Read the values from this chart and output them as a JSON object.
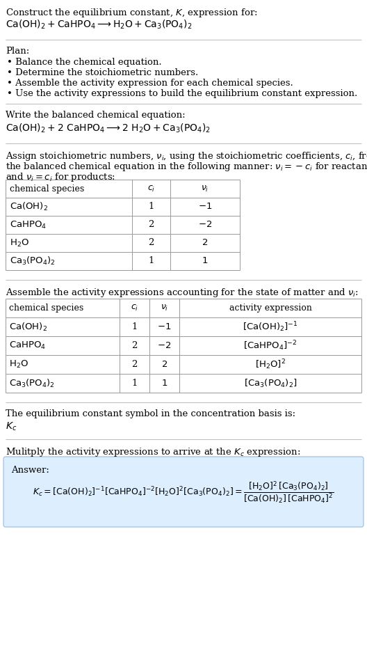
{
  "title_line1": "Construct the equilibrium constant, $K$, expression for:",
  "title_line2": "$\\mathrm{Ca(OH)_2 + CaHPO_4 \\longrightarrow H_2O + Ca_3(PO_4)_2}$",
  "plan_header": "Plan:",
  "plan_items": [
    "• Balance the chemical equation.",
    "• Determine the stoichiometric numbers.",
    "• Assemble the activity expression for each chemical species.",
    "• Use the activity expressions to build the equilibrium constant expression."
  ],
  "balanced_header": "Write the balanced chemical equation:",
  "balanced_eq": "$\\mathrm{Ca(OH)_2 + 2\\ CaHPO_4 \\longrightarrow 2\\ H_2O + Ca_3(PO_4)_2}$",
  "stoich_intro1": "Assign stoichiometric numbers, $\\nu_i$, using the stoichiometric coefficients, $c_i$, from",
  "stoich_intro2": "the balanced chemical equation in the following manner: $\\nu_i = -c_i$ for reactants",
  "stoich_intro3": "and $\\nu_i = c_i$ for products:",
  "table1_headers": [
    "chemical species",
    "$c_i$",
    "$\\nu_i$"
  ],
  "table1_rows": [
    [
      "$\\mathrm{Ca(OH)_2}$",
      "1",
      "$-1$"
    ],
    [
      "$\\mathrm{CaHPO_4}$",
      "2",
      "$-2$"
    ],
    [
      "$\\mathrm{H_2O}$",
      "2",
      "$2$"
    ],
    [
      "$\\mathrm{Ca_3(PO_4)_2}$",
      "1",
      "$1$"
    ]
  ],
  "activity_intro": "Assemble the activity expressions accounting for the state of matter and $\\nu_i$:",
  "table2_headers": [
    "chemical species",
    "$c_i$",
    "$\\nu_i$",
    "activity expression"
  ],
  "table2_rows": [
    [
      "$\\mathrm{Ca(OH)_2}$",
      "1",
      "$-1$",
      "$[\\mathrm{Ca(OH)_2}]^{-1}$"
    ],
    [
      "$\\mathrm{CaHPO_4}$",
      "2",
      "$-2$",
      "$[\\mathrm{CaHPO_4}]^{-2}$"
    ],
    [
      "$\\mathrm{H_2O}$",
      "2",
      "$2$",
      "$[\\mathrm{H_2O}]^{2}$"
    ],
    [
      "$\\mathrm{Ca_3(PO_4)_2}$",
      "1",
      "$1$",
      "$[\\mathrm{Ca_3(PO_4)_2}]$"
    ]
  ],
  "kc_intro": "The equilibrium constant symbol in the concentration basis is:",
  "kc_symbol": "$K_c$",
  "multiply_intro": "Mulitply the activity expressions to arrive at the $K_c$ expression:",
  "answer_label": "Answer:",
  "answer_eq": "$K_c = [\\mathrm{Ca(OH)_2}]^{-1} [\\mathrm{CaHPO_4}]^{-2} [\\mathrm{H_2O}]^{2} [\\mathrm{Ca_3(PO_4)_2}] = \\dfrac{[\\mathrm{H_2O}]^{2}\\, [\\mathrm{Ca_3(PO_4)_2}]}{[\\mathrm{Ca(OH)_2}]\\, [\\mathrm{CaHPO_4}]^{2}}$",
  "bg_color": "#ffffff",
  "table_line_color": "#999999",
  "section_line_color": "#bbbbbb",
  "answer_box_color": "#ddeeff",
  "answer_box_edge": "#99bbdd",
  "text_color": "#000000",
  "fs": 9.5
}
